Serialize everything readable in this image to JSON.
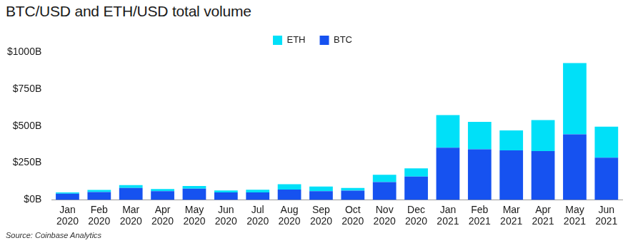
{
  "chart_data": {
    "type": "bar",
    "title": "BTC/USD and ETH/USD total volume",
    "source": "Source: Coinbase Analytics",
    "categories": [
      "Jan 2020",
      "Feb 2020",
      "Mar 2020",
      "Apr 2020",
      "May 2020",
      "Jun 2020",
      "Jul 2020",
      "Aug 2020",
      "Sep 2020",
      "Oct 2020",
      "Nov 2020",
      "Dec 2020",
      "Jan 2021",
      "Feb 2021",
      "Mar 2021",
      "Apr 2021",
      "May 2021",
      "Jun 2021"
    ],
    "series": [
      {
        "name": "BTC",
        "color": "#1652f0",
        "values": [
          42,
          52,
          80,
          58,
          75,
          50,
          50,
          70,
          58,
          62,
          120,
          158,
          353,
          342,
          335,
          330,
          443,
          285
        ]
      },
      {
        "name": "ETH",
        "color": "#00e0f8",
        "values": [
          8,
          15,
          20,
          15,
          18,
          13,
          18,
          35,
          32,
          18,
          50,
          55,
          220,
          186,
          135,
          210,
          482,
          210
        ]
      }
    ],
    "stacked": true,
    "legend": "top",
    "grid": false,
    "ylim": [
      0,
      1000
    ],
    "yticks": [
      {
        "value": 0,
        "label": "$0B"
      },
      {
        "value": 250,
        "label": "$250B"
      },
      {
        "value": 500,
        "label": "$500B"
      },
      {
        "value": 750,
        "label": "$750B"
      },
      {
        "value": 1000,
        "label": "$1000B"
      }
    ]
  }
}
